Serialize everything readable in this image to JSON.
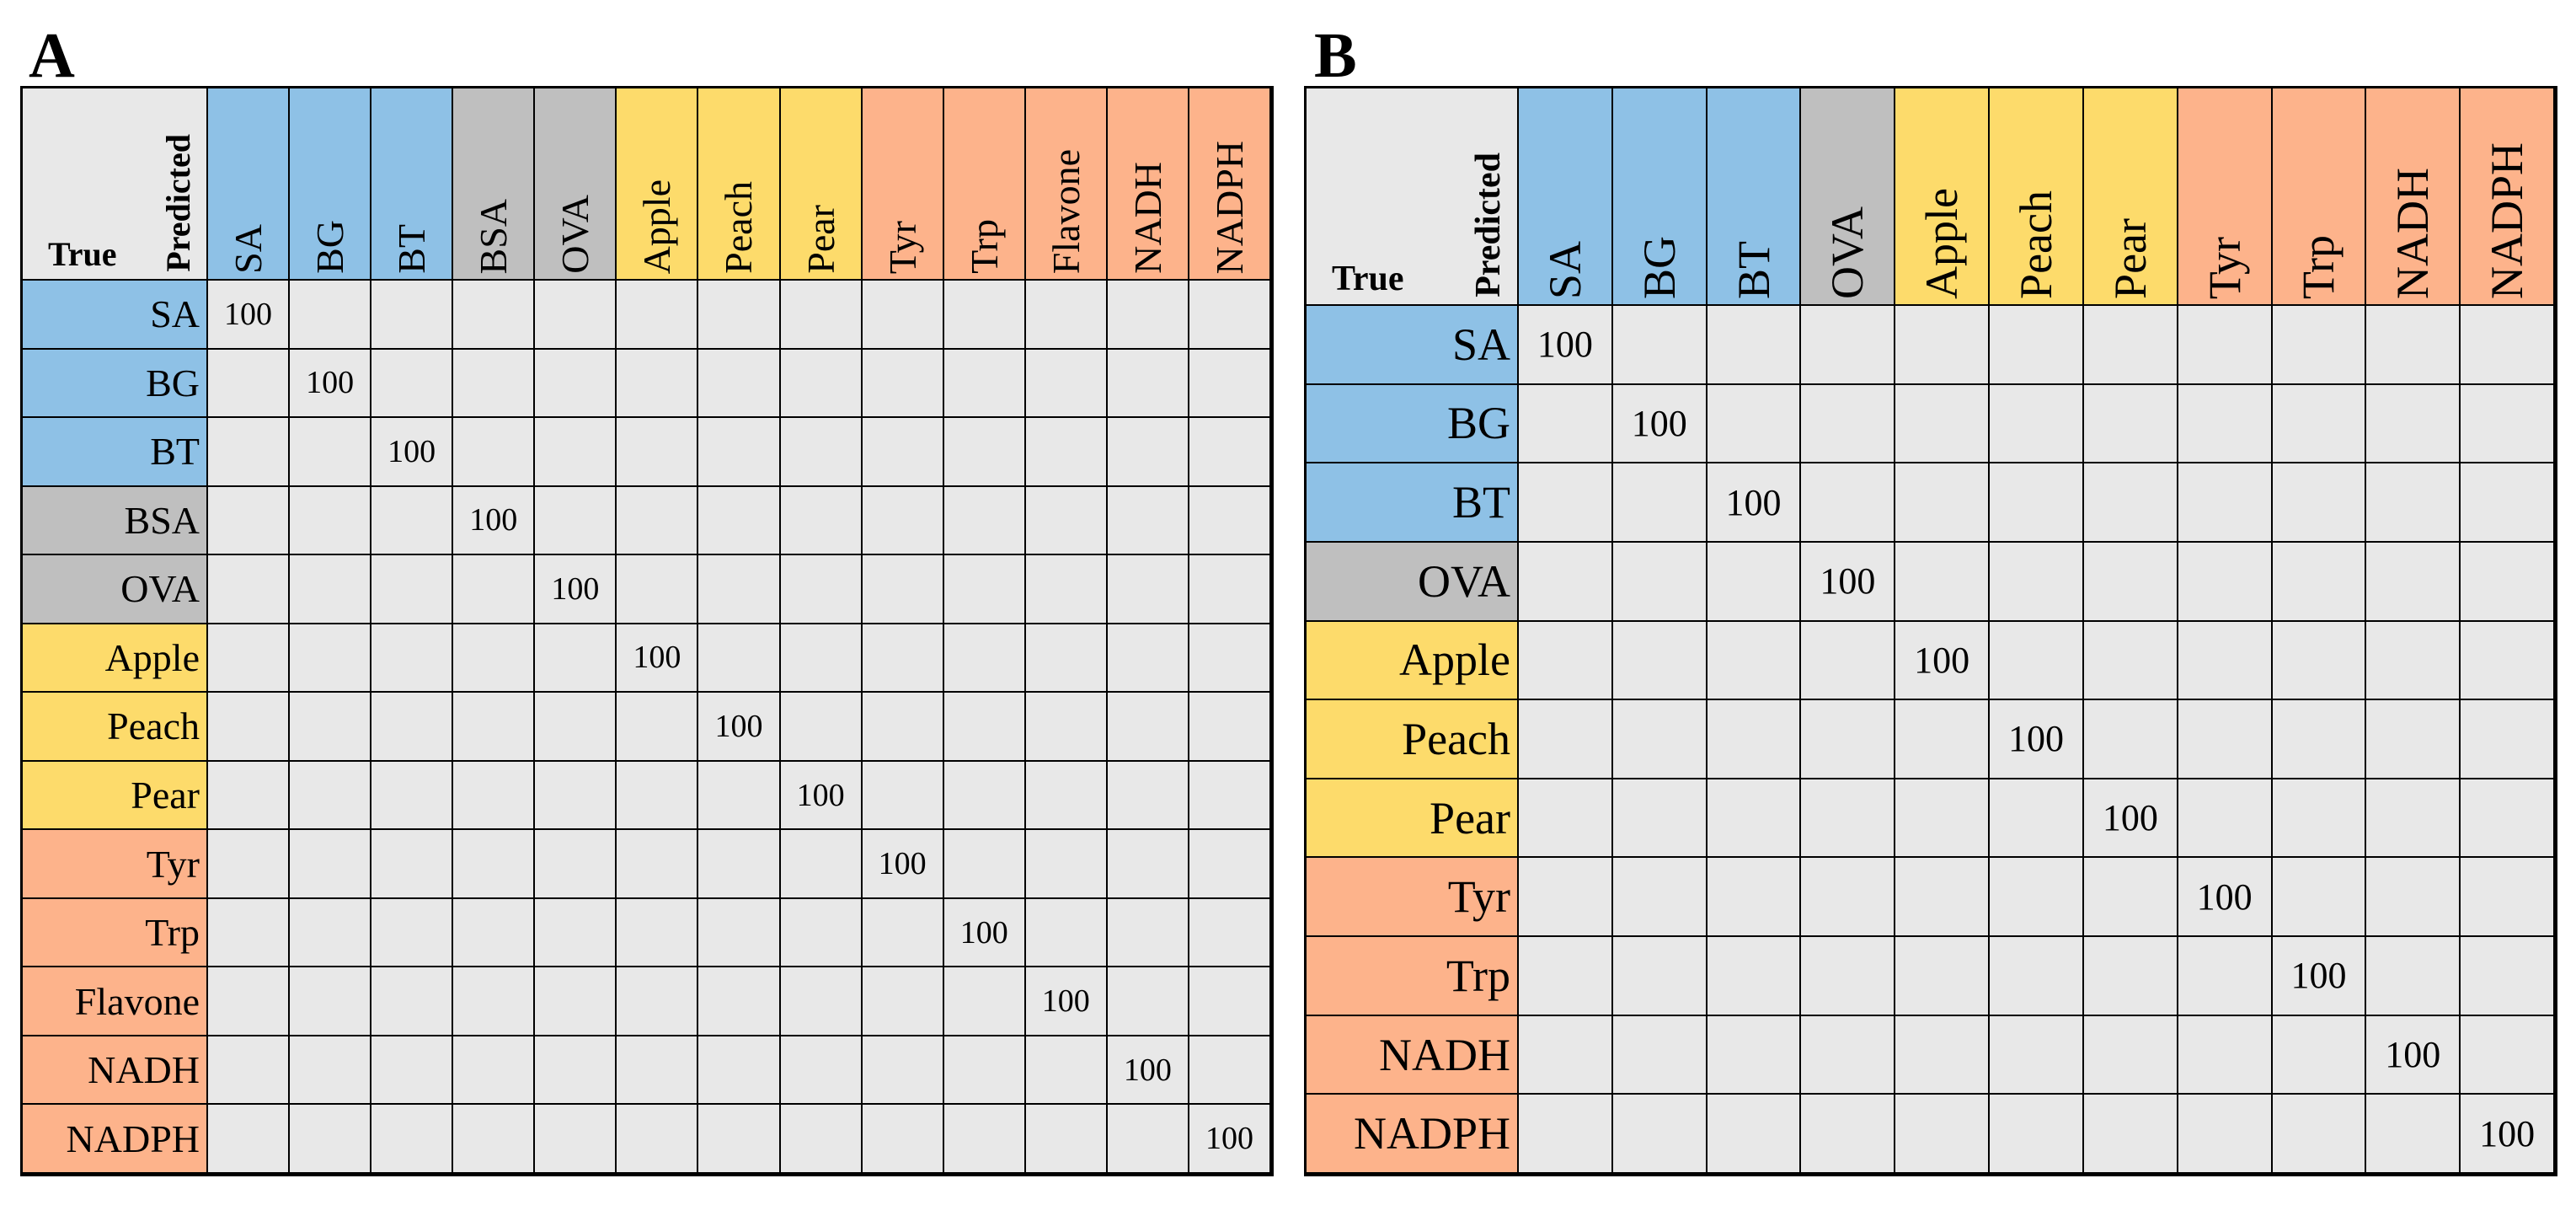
{
  "colors": {
    "protein-blue": "#8ec1e6",
    "protein-gray": "#bfbfbf",
    "fruit-yellow": "#fddb6b",
    "molecule-orange": "#fdb38b",
    "cell-background": "#e8e8e8"
  },
  "chart_data": [
    {
      "type": "heatmap",
      "panel_label": "A",
      "corner_row_label": "True",
      "corner_col_label": "Predicted",
      "categories": [
        "SA",
        "BG",
        "BT",
        "BSA",
        "OVA",
        "Apple",
        "Peach",
        "Pear",
        "Tyr",
        "Trp",
        "Flavone",
        "NADH",
        "NADPH"
      ],
      "category_groups": [
        "protein-blue",
        "protein-blue",
        "protein-blue",
        "protein-gray",
        "protein-gray",
        "fruit-yellow",
        "fruit-yellow",
        "fruit-yellow",
        "molecule-orange",
        "molecule-orange",
        "molecule-orange",
        "molecule-orange",
        "molecule-orange"
      ],
      "values": [
        [
          100,
          null,
          null,
          null,
          null,
          null,
          null,
          null,
          null,
          null,
          null,
          null,
          null
        ],
        [
          null,
          100,
          null,
          null,
          null,
          null,
          null,
          null,
          null,
          null,
          null,
          null,
          null
        ],
        [
          null,
          null,
          100,
          null,
          null,
          null,
          null,
          null,
          null,
          null,
          null,
          null,
          null
        ],
        [
          null,
          null,
          null,
          100,
          null,
          null,
          null,
          null,
          null,
          null,
          null,
          null,
          null
        ],
        [
          null,
          null,
          null,
          null,
          100,
          null,
          null,
          null,
          null,
          null,
          null,
          null,
          null
        ],
        [
          null,
          null,
          null,
          null,
          null,
          100,
          null,
          null,
          null,
          null,
          null,
          null,
          null
        ],
        [
          null,
          null,
          null,
          null,
          null,
          null,
          100,
          null,
          null,
          null,
          null,
          null,
          null
        ],
        [
          null,
          null,
          null,
          null,
          null,
          null,
          null,
          100,
          null,
          null,
          null,
          null,
          null
        ],
        [
          null,
          null,
          null,
          null,
          null,
          null,
          null,
          null,
          100,
          null,
          null,
          null,
          null
        ],
        [
          null,
          null,
          null,
          null,
          null,
          null,
          null,
          null,
          null,
          100,
          null,
          null,
          null
        ],
        [
          null,
          null,
          null,
          null,
          null,
          null,
          null,
          null,
          null,
          null,
          100,
          null,
          null
        ],
        [
          null,
          null,
          null,
          null,
          null,
          null,
          null,
          null,
          null,
          null,
          null,
          100,
          null
        ],
        [
          null,
          null,
          null,
          null,
          null,
          null,
          null,
          null,
          null,
          null,
          null,
          null,
          100
        ]
      ]
    },
    {
      "type": "heatmap",
      "panel_label": "B",
      "corner_row_label": "True",
      "corner_col_label": "Predicted",
      "categories": [
        "SA",
        "BG",
        "BT",
        "OVA",
        "Apple",
        "Peach",
        "Pear",
        "Tyr",
        "Trp",
        "NADH",
        "NADPH"
      ],
      "category_groups": [
        "protein-blue",
        "protein-blue",
        "protein-blue",
        "protein-gray",
        "fruit-yellow",
        "fruit-yellow",
        "fruit-yellow",
        "molecule-orange",
        "molecule-orange",
        "molecule-orange",
        "molecule-orange"
      ],
      "values": [
        [
          100,
          null,
          null,
          null,
          null,
          null,
          null,
          null,
          null,
          null,
          null
        ],
        [
          null,
          100,
          null,
          null,
          null,
          null,
          null,
          null,
          null,
          null,
          null
        ],
        [
          null,
          null,
          100,
          null,
          null,
          null,
          null,
          null,
          null,
          null,
          null
        ],
        [
          null,
          null,
          null,
          100,
          null,
          null,
          null,
          null,
          null,
          null,
          null
        ],
        [
          null,
          null,
          null,
          null,
          100,
          null,
          null,
          null,
          null,
          null,
          null
        ],
        [
          null,
          null,
          null,
          null,
          null,
          100,
          null,
          null,
          null,
          null,
          null
        ],
        [
          null,
          null,
          null,
          null,
          null,
          null,
          100,
          null,
          null,
          null,
          null
        ],
        [
          null,
          null,
          null,
          null,
          null,
          null,
          null,
          100,
          null,
          null,
          null
        ],
        [
          null,
          null,
          null,
          null,
          null,
          null,
          null,
          null,
          100,
          null,
          null
        ],
        [
          null,
          null,
          null,
          null,
          null,
          null,
          null,
          null,
          null,
          100,
          null
        ],
        [
          null,
          null,
          null,
          null,
          null,
          null,
          null,
          null,
          null,
          null,
          100
        ]
      ]
    }
  ]
}
